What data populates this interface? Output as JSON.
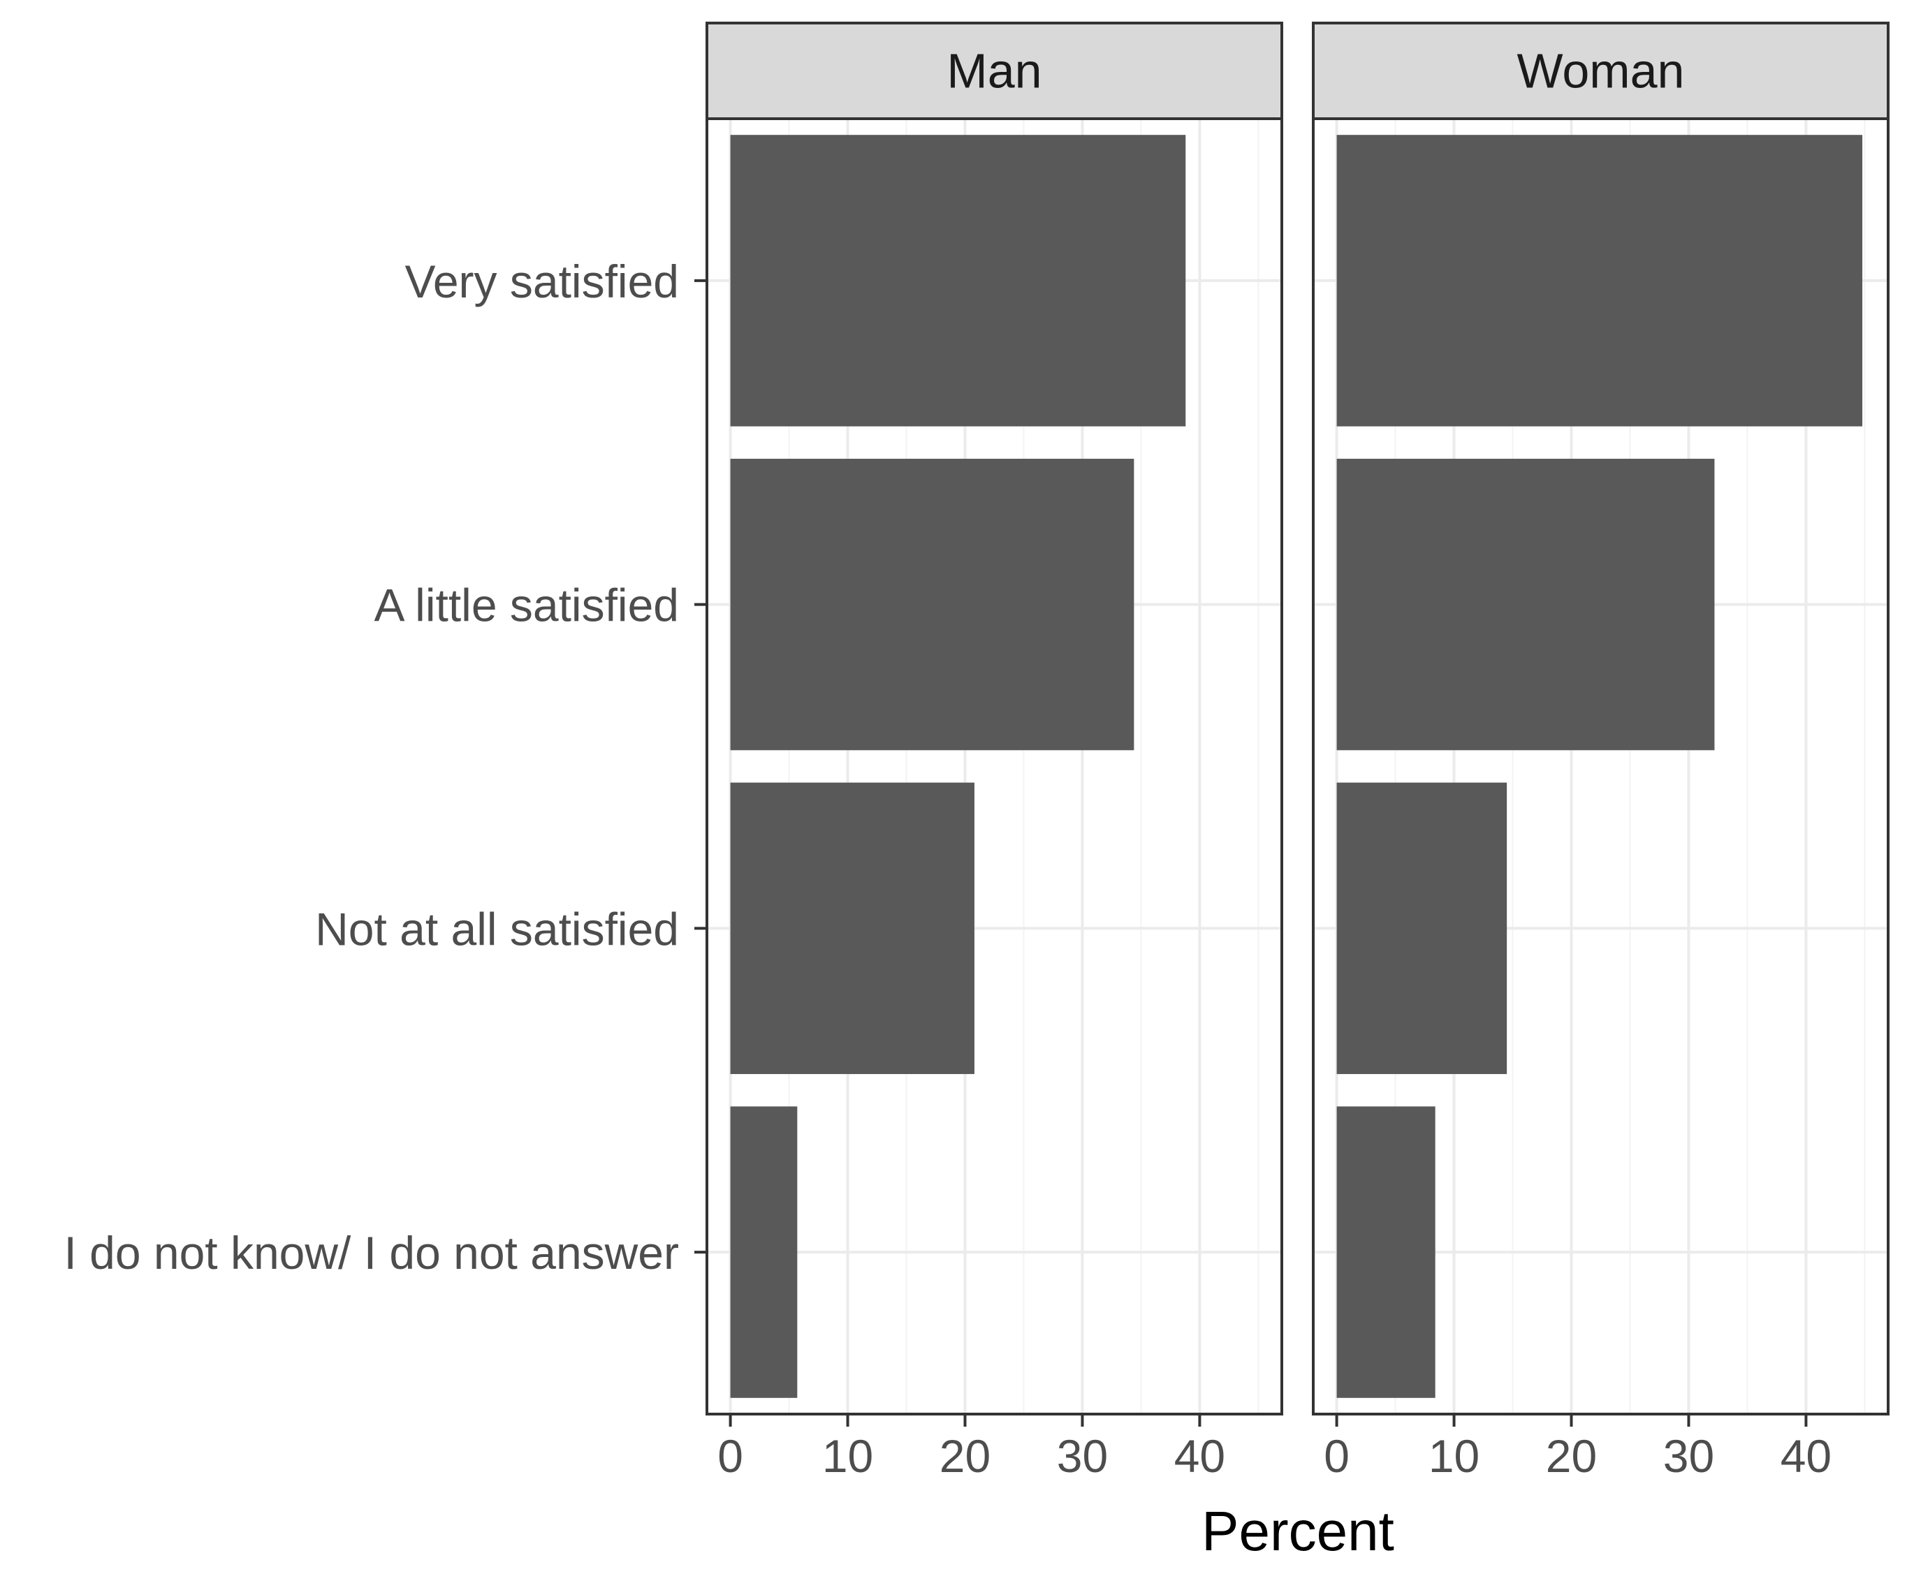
{
  "chart_data": {
    "type": "bar",
    "orientation": "horizontal",
    "facets": [
      "Man",
      "Woman"
    ],
    "categories": [
      "Very satisfied",
      "A little satisfied",
      "Not at all satisfied",
      "I do not know/ I do not answer"
    ],
    "series": [
      {
        "name": "Man",
        "values": [
          38.8,
          34.4,
          20.8,
          5.7
        ]
      },
      {
        "name": "Woman",
        "values": [
          44.8,
          32.2,
          14.5,
          8.4
        ]
      }
    ],
    "xlabel": "Percent",
    "ylabel": "",
    "xlim": [
      -2,
      47
    ],
    "xticks": [
      0,
      10,
      20,
      30,
      40
    ],
    "grid": true,
    "legend": "none",
    "colors": {
      "bar": "#595959",
      "strip_fill": "#d9d9d9",
      "panel_border": "#333333",
      "grid_major": "#ebebeb",
      "grid_minor": "#f3f3f3"
    }
  }
}
